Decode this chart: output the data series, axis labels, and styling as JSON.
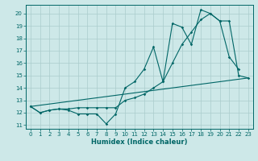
{
  "title": "",
  "xlabel": "Humidex (Indice chaleur)",
  "bg_color": "#cde8e8",
  "line_color": "#006666",
  "grid_color": "#aacccc",
  "xlim": [
    -0.5,
    23.5
  ],
  "ylim": [
    10.7,
    20.7
  ],
  "yticks": [
    11,
    12,
    13,
    14,
    15,
    16,
    17,
    18,
    19,
    20
  ],
  "xticks": [
    0,
    1,
    2,
    3,
    4,
    5,
    6,
    7,
    8,
    9,
    10,
    11,
    12,
    13,
    14,
    15,
    16,
    17,
    18,
    19,
    20,
    21,
    22,
    23
  ],
  "series": [
    {
      "x": [
        0,
        1,
        2,
        3,
        4,
        5,
        6,
        7,
        8,
        9,
        10,
        11,
        12,
        13,
        14,
        15,
        16,
        17,
        18,
        19,
        20,
        21,
        22
      ],
      "y": [
        12.5,
        12.0,
        12.2,
        12.3,
        12.2,
        11.9,
        11.9,
        11.9,
        11.1,
        11.9,
        14.0,
        14.5,
        15.5,
        17.3,
        14.5,
        19.2,
        18.9,
        17.5,
        20.3,
        20.0,
        19.4,
        16.5,
        15.5
      ]
    },
    {
      "x": [
        0,
        1,
        2,
        3,
        4,
        5,
        6,
        7,
        8,
        9,
        10,
        11,
        12,
        13,
        14,
        15,
        16,
        17,
        18,
        19,
        20,
        21,
        22,
        23
      ],
      "y": [
        12.5,
        12.0,
        12.2,
        12.3,
        12.3,
        12.4,
        12.4,
        12.4,
        12.4,
        12.4,
        13.0,
        13.2,
        13.5,
        14.0,
        14.5,
        16.0,
        17.5,
        18.5,
        19.5,
        20.0,
        19.4,
        19.4,
        15.0,
        14.8
      ]
    },
    {
      "x": [
        0,
        23
      ],
      "y": [
        12.5,
        14.8
      ]
    }
  ]
}
